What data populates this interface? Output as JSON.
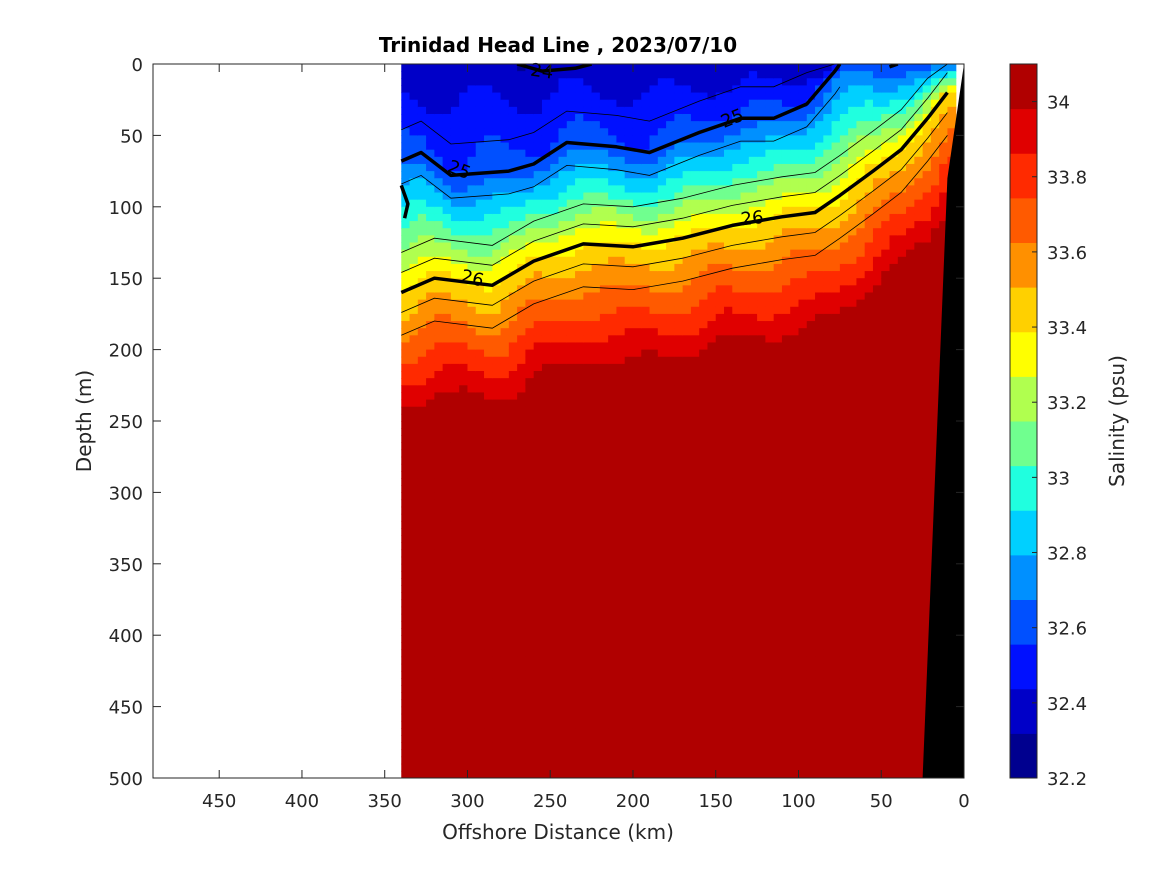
{
  "chart_data": {
    "type": "heatmap",
    "title": "Trinidad Head Line , 2023/07/10",
    "xlabel": "Offshore Distance (km)",
    "ylabel": "Depth (m)",
    "xlim": [
      490,
      0
    ],
    "ylim": [
      0,
      500
    ],
    "x_ticks": [
      "450",
      "400",
      "350",
      "300",
      "250",
      "200",
      "150",
      "100",
      "50",
      "0"
    ],
    "y_ticks": [
      "0",
      "50",
      "100",
      "150",
      "200",
      "250",
      "300",
      "350",
      "400",
      "450",
      "500"
    ],
    "colorbar": {
      "label": "Salinity (psu)",
      "range": [
        32.2,
        34.1
      ],
      "tick_labels": [
        "32.2",
        "32.4",
        "32.6",
        "32.8",
        "33",
        "33.2",
        "33.4",
        "33.6",
        "33.8",
        "34"
      ],
      "colors": [
        "#00008f",
        "#0000c8",
        "#0010ff",
        "#0050ff",
        "#0090ff",
        "#00d0ff",
        "#20ffdf",
        "#70ff8f",
        "#b0ff4f",
        "#ffff00",
        "#ffd000",
        "#ff9000",
        "#ff5a00",
        "#ff2a00",
        "#e00000",
        "#b00000"
      ]
    },
    "data_extent_km": [
      340,
      10
    ],
    "isopycnals": [
      {
        "label": "24",
        "points": [
          [
            270,
            0
          ],
          [
            255,
            5
          ],
          [
            235,
            3
          ],
          [
            225,
            0
          ]
        ]
      },
      {
        "label": "25",
        "points": [
          [
            340,
            68
          ],
          [
            328,
            62
          ],
          [
            310,
            78
          ],
          [
            275,
            75
          ],
          [
            260,
            70
          ],
          [
            240,
            55
          ],
          [
            210,
            58
          ],
          [
            190,
            62
          ],
          [
            160,
            48
          ],
          [
            135,
            38
          ],
          [
            115,
            38
          ],
          [
            95,
            28
          ],
          [
            78,
            5
          ],
          [
            75,
            0
          ]
        ]
      },
      {
        "label": "26",
        "points": [
          [
            340,
            160
          ],
          [
            320,
            150
          ],
          [
            285,
            155
          ],
          [
            260,
            138
          ],
          [
            230,
            126
          ],
          [
            200,
            128
          ],
          [
            170,
            122
          ],
          [
            140,
            113
          ],
          [
            110,
            107
          ],
          [
            90,
            104
          ],
          [
            75,
            92
          ],
          [
            55,
            75
          ],
          [
            38,
            60
          ],
          [
            22,
            38
          ],
          [
            10,
            20
          ]
        ]
      },
      {
        "label": "",
        "points": [
          [
            340,
            85
          ],
          [
            336,
            98
          ],
          [
            338,
            108
          ]
        ]
      },
      {
        "label": "",
        "points": [
          [
            45,
            2
          ],
          [
            40,
            0
          ]
        ]
      }
    ],
    "shelf_depth_points": [
      [
        25,
        500
      ],
      [
        10,
        80
      ],
      [
        0,
        0
      ],
      [
        0,
        500
      ]
    ]
  }
}
